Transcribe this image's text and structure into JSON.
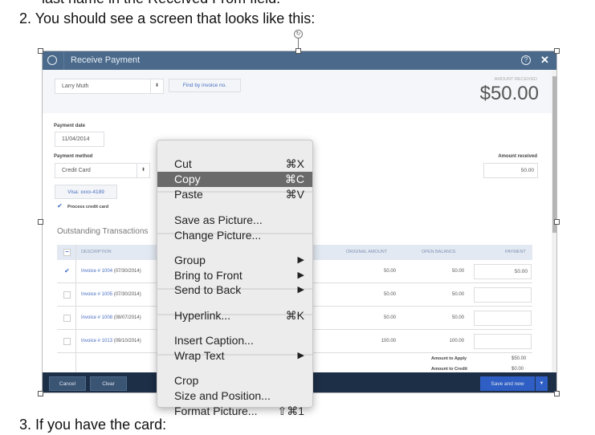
{
  "document": {
    "prev_line": "last name in the Received From field.",
    "step2": "2.  You should see a screen that looks like this:",
    "step3": "3.  If you have the card:"
  },
  "dialog": {
    "title": "Receive Payment",
    "header_icons": [
      "history-icon",
      "help-icon",
      "close-icon"
    ],
    "help_glyph": "?",
    "close_glyph": "✕",
    "customer": "Larry Muth",
    "find_by_invoice": "Find by invoice no.",
    "amount_received_caption": "AMOUNT RECEIVED",
    "amount_received_big": "$50.00",
    "payment_date_label": "Payment date",
    "payment_date": "11/04/2014",
    "payment_method_label": "Payment method",
    "payment_method": "Credit Card",
    "card": "Visa: xxxx-4189",
    "process_credit_card": "Process credit card",
    "amount_received_label": "Amount received",
    "amount_received_value": "50.00",
    "outstanding_title": "Outstanding Transactions",
    "columns": [
      "DESCRIPTION",
      "ORIGINAL AMOUNT",
      "OPEN BALANCE",
      "PAYMENT"
    ],
    "rows": [
      {
        "invoice": "Invoice # 1004",
        "date": "(07/30/2014)",
        "original": "50.00",
        "open": "50.00",
        "payment": "50.00",
        "checked": true
      },
      {
        "invoice": "Invoice # 1005",
        "date": "(07/30/2014)",
        "original": "50.00",
        "open": "50.00",
        "payment": "",
        "checked": false
      },
      {
        "invoice": "Invoice # 1008",
        "date": "(08/07/2014)",
        "original": "50.00",
        "open": "50.00",
        "payment": "",
        "checked": false
      },
      {
        "invoice": "Invoice # 1013",
        "date": "(09/10/2014)",
        "original": "100.00",
        "open": "100.00",
        "payment": "",
        "checked": false
      }
    ],
    "amount_to_apply_label": "Amount to Apply",
    "amount_to_apply": "$50.00",
    "amount_to_credit_label": "Amount to Credit",
    "amount_to_credit": "$0.00",
    "cancel": "Cancel",
    "clear": "Clear",
    "save_and_new": "Save and new"
  },
  "context_menu": {
    "items": [
      {
        "label": "Cut",
        "shortcut": "⌘X"
      },
      {
        "label": "Copy",
        "shortcut": "⌘C",
        "highlighted": true
      },
      {
        "label": "Paste",
        "shortcut": "⌘V"
      },
      {
        "label": "Save as Picture..."
      },
      {
        "label": "Change Picture..."
      },
      {
        "label": "Group",
        "submenu": true
      },
      {
        "label": "Bring to Front",
        "submenu": true
      },
      {
        "label": "Send to Back",
        "submenu": true
      },
      {
        "label": "Hyperlink...",
        "shortcut": "⌘K"
      },
      {
        "label": "Insert Caption..."
      },
      {
        "label": "Wrap Text",
        "submenu": true
      },
      {
        "label": "Crop"
      },
      {
        "label": "Size and Position..."
      },
      {
        "label": "Format Picture...",
        "shortcut": "⇧⌘1"
      }
    ],
    "submenu_glyph": "▶"
  }
}
